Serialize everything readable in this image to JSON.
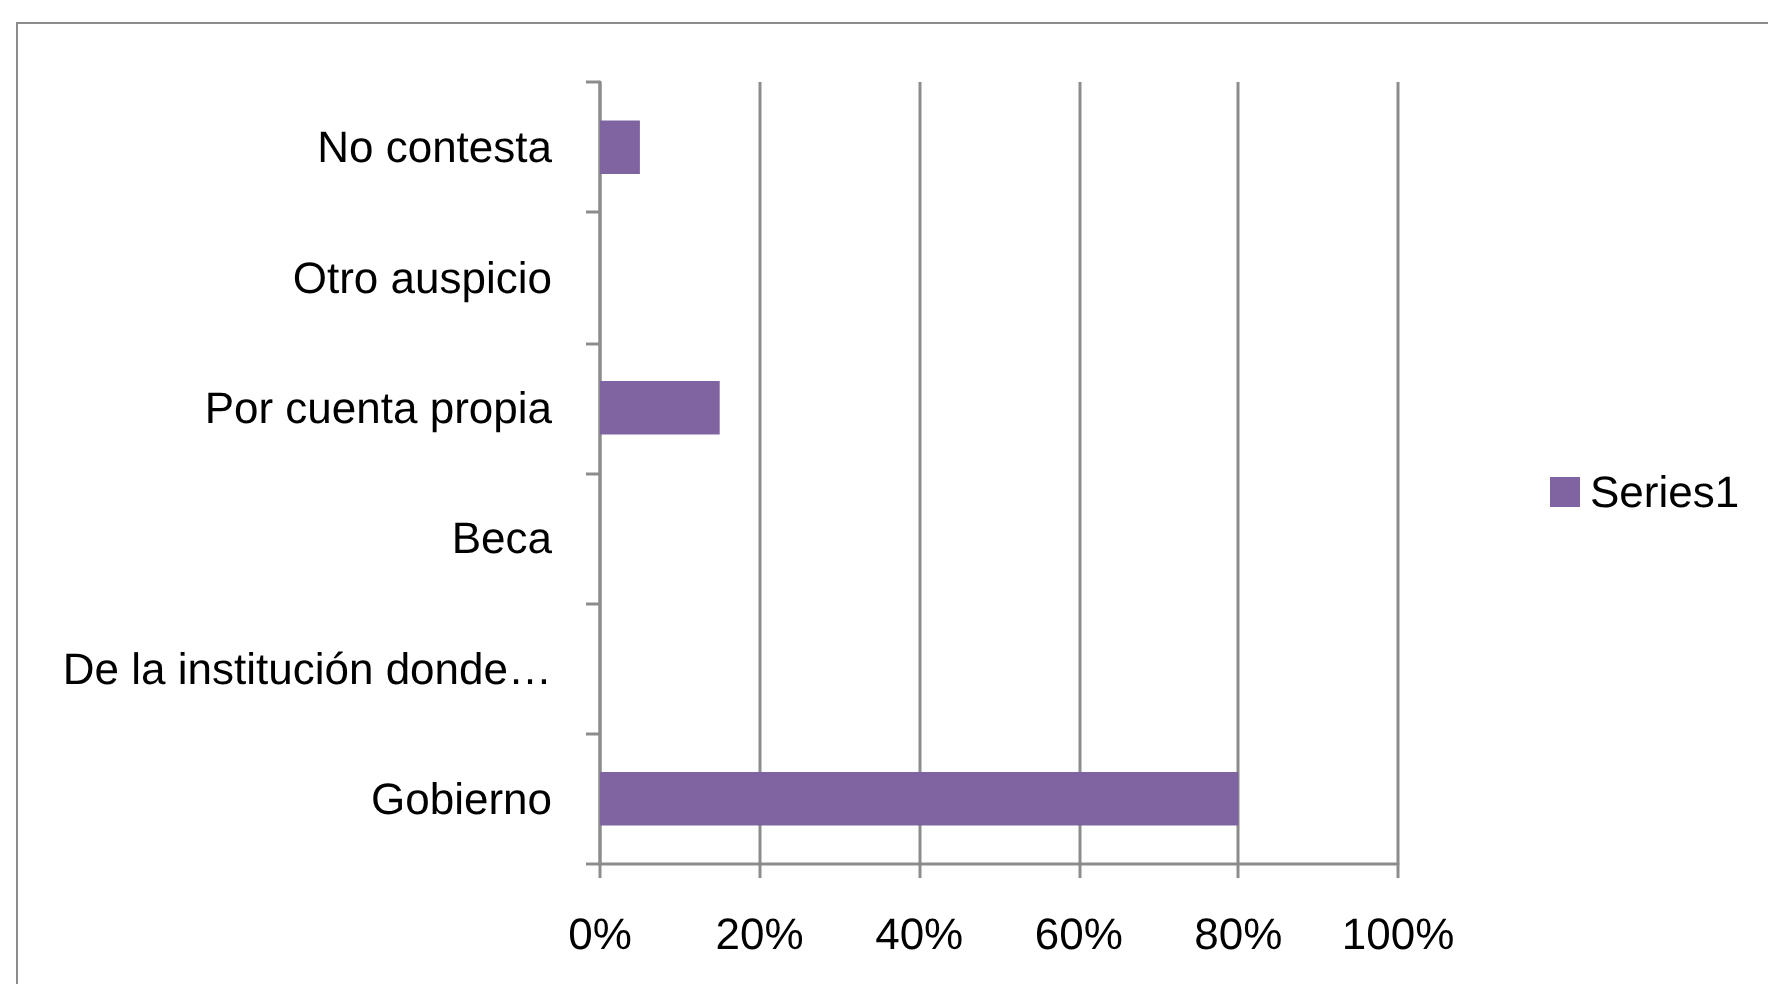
{
  "chart_data": {
    "type": "bar",
    "orientation": "horizontal",
    "categories": [
      "No contesta",
      "Otro auspicio",
      "Por cuenta propia",
      "Beca",
      "De la institución donde…",
      "Gobierno"
    ],
    "series": [
      {
        "name": "Series1",
        "color": "#8064a2",
        "values": [
          5,
          0,
          15,
          0,
          0,
          80
        ]
      }
    ],
    "xlim": [
      0,
      100
    ],
    "xticks": [
      {
        "value": 0,
        "label": "0%"
      },
      {
        "value": 20,
        "label": "20%"
      },
      {
        "value": 40,
        "label": "40%"
      },
      {
        "value": 60,
        "label": "60%"
      },
      {
        "value": 80,
        "label": "80%"
      },
      {
        "value": 100,
        "label": "100%"
      }
    ],
    "grid": "x",
    "legend": "right"
  }
}
